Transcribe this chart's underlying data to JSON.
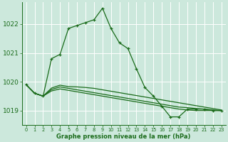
{
  "bg_color": "#cce8dc",
  "grid_color": "#ffffff",
  "line_color": "#1a6b1a",
  "marker_color": "#1a6b1a",
  "xlabel": "Graphe pression niveau de la mer (hPa)",
  "xlabel_color": "#1a6b1a",
  "ylim": [
    1018.5,
    1022.75
  ],
  "xlim": [
    -0.5,
    23.5
  ],
  "yticks": [
    1019,
    1020,
    1021,
    1022
  ],
  "xticks": [
    0,
    1,
    2,
    3,
    4,
    5,
    6,
    7,
    8,
    9,
    10,
    11,
    12,
    13,
    14,
    15,
    16,
    17,
    18,
    19,
    20,
    21,
    22,
    23
  ],
  "line1_x": [
    0,
    1,
    2,
    3,
    4,
    5,
    6,
    7,
    8,
    9,
    10,
    11,
    12,
    13,
    14,
    15,
    16,
    17,
    18,
    19,
    20,
    21,
    22,
    23
  ],
  "line1_y": [
    1019.9,
    1019.6,
    1019.5,
    1020.8,
    1020.95,
    1021.85,
    1021.95,
    1022.05,
    1022.15,
    1022.55,
    1021.85,
    1021.35,
    1021.15,
    1020.45,
    1019.8,
    1019.5,
    1019.15,
    1018.78,
    1018.78,
    1019.05,
    1019.05,
    1019.05,
    1019.0,
    1019.0
  ],
  "line2_x": [
    0,
    1,
    2,
    3,
    4,
    5,
    6,
    7,
    8,
    9,
    10,
    11,
    12,
    13,
    14,
    15,
    16,
    17,
    18,
    19,
    20,
    21,
    22,
    23
  ],
  "line2_y": [
    1019.9,
    1019.6,
    1019.5,
    1019.78,
    1019.88,
    1019.83,
    1019.82,
    1019.8,
    1019.77,
    1019.72,
    1019.67,
    1019.62,
    1019.57,
    1019.52,
    1019.47,
    1019.42,
    1019.37,
    1019.32,
    1019.27,
    1019.22,
    1019.17,
    1019.12,
    1019.07,
    1019.02
  ],
  "line3_x": [
    0,
    1,
    2,
    3,
    4,
    5,
    6,
    7,
    8,
    9,
    10,
    11,
    12,
    13,
    14,
    15,
    16,
    17,
    18,
    19,
    20,
    21,
    22,
    23
  ],
  "line3_y": [
    1019.9,
    1019.6,
    1019.5,
    1019.73,
    1019.82,
    1019.77,
    1019.72,
    1019.67,
    1019.62,
    1019.57,
    1019.52,
    1019.47,
    1019.42,
    1019.37,
    1019.32,
    1019.27,
    1019.22,
    1019.17,
    1019.12,
    1019.1,
    1019.07,
    1019.05,
    1019.02,
    1019.0
  ],
  "line4_x": [
    0,
    1,
    2,
    3,
    4,
    5,
    6,
    7,
    8,
    9,
    10,
    11,
    12,
    13,
    14,
    15,
    16,
    17,
    18,
    19,
    20,
    21,
    22,
    23
  ],
  "line4_y": [
    1019.9,
    1019.6,
    1019.5,
    1019.68,
    1019.75,
    1019.7,
    1019.65,
    1019.6,
    1019.55,
    1019.5,
    1019.45,
    1019.4,
    1019.35,
    1019.3,
    1019.25,
    1019.2,
    1019.15,
    1019.1,
    1019.05,
    1019.02,
    1019.0,
    1019.0,
    1019.0,
    1019.0
  ],
  "ytick_fontsize": 6.5,
  "xtick_fontsize": 4.8,
  "xlabel_fontsize": 6.0
}
